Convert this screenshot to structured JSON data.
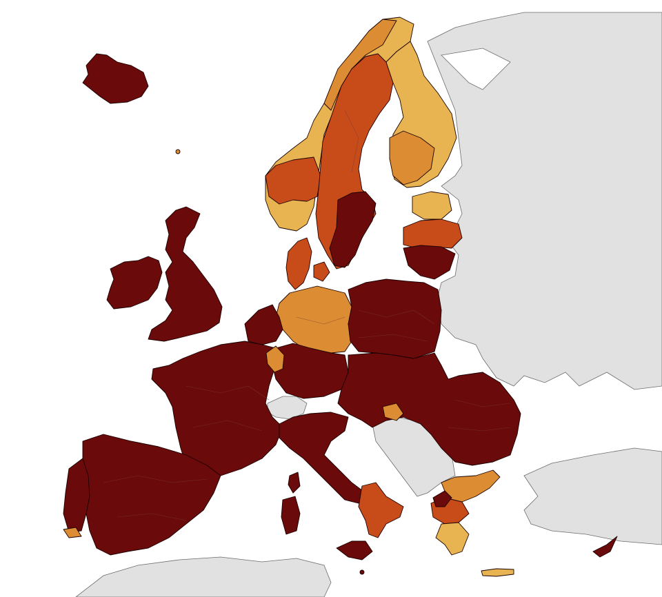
{
  "colors": {
    "sea": "#ffffff",
    "non_member": "#e1e1e1",
    "dark_red": "#6b0a0a",
    "red_orange": "#c84b1a",
    "orange": "#dc8c32",
    "light_orange": "#e8b452"
  },
  "legend": []
}
